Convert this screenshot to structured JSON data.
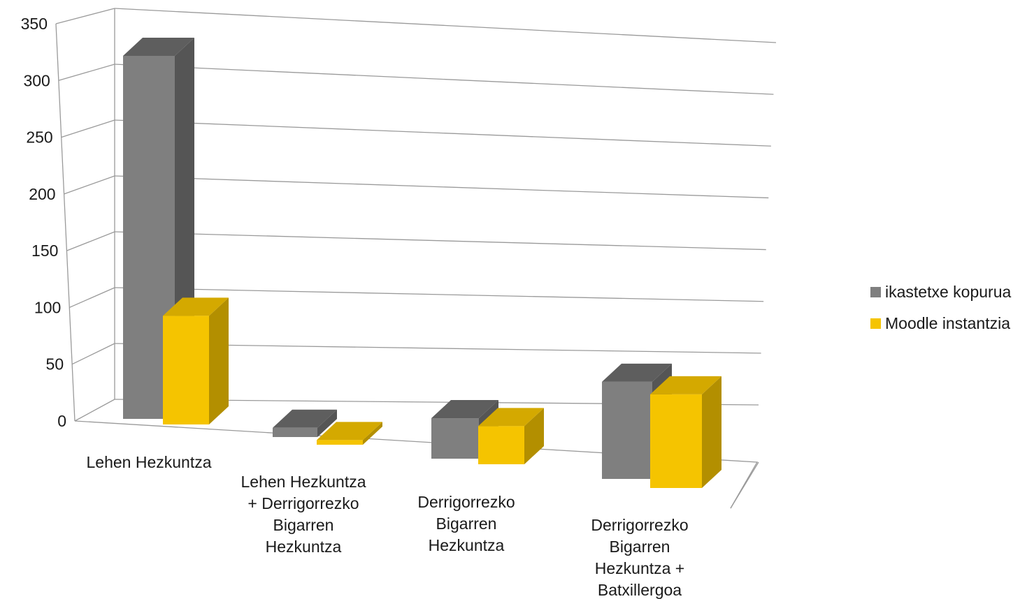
{
  "chart_data": {
    "type": "bar",
    "title": "",
    "xlabel": "",
    "ylabel": "",
    "ylim": [
      0,
      350
    ],
    "yticks": [
      0,
      50,
      100,
      150,
      200,
      250,
      300,
      350
    ],
    "grid": true,
    "legend_position": "right",
    "categories": [
      [
        "Lehen Hezkuntza"
      ],
      [
        "Lehen Hezkuntza",
        "+ Derrigorrezko",
        "Bigarren",
        "Hezkuntza"
      ],
      [
        "Derrigorrezko",
        "Bigarren",
        "Hezkuntza"
      ],
      [
        "Derrigorrezko",
        "Bigarren",
        "Hezkuntza +",
        "Batxillergoa"
      ]
    ],
    "series": [
      {
        "name": "ikastetxe kopurua",
        "values": [
          314,
          8,
          35,
          84
        ],
        "color": "#7f7f7f"
      },
      {
        "name": "Moodle instantzia",
        "values": [
          94,
          4,
          33,
          81
        ],
        "color": "#f5c400"
      }
    ]
  },
  "legend": {
    "items": [
      {
        "label": "ikastetxe kopurua",
        "color": "#7f7f7f"
      },
      {
        "label": "Moodle instantzia",
        "color": "#f5c400"
      }
    ]
  }
}
